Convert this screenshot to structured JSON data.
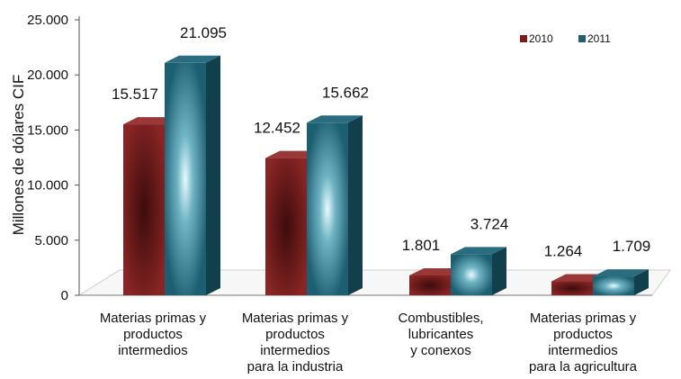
{
  "chart_data": {
    "type": "bar",
    "ylabel": "Millones  de dólares CIF",
    "ylim": [
      0,
      25000
    ],
    "yticks": [
      0,
      5000,
      10000,
      15000,
      20000,
      25000
    ],
    "ytick_labels": [
      "0",
      "5.000",
      "10.000",
      "15.000",
      "20.000",
      "25.000"
    ],
    "categories": [
      [
        "Materias primas y",
        "productos",
        "intermedios"
      ],
      [
        "Materias primas y",
        "productos",
        "intermedios",
        "para la industria"
      ],
      [
        "Combustibles,",
        "lubricantes",
        "y conexos"
      ],
      [
        "Materias primas y",
        "productos",
        "intermedios",
        "para la agricultura"
      ]
    ],
    "series": [
      {
        "name": "2010",
        "values": [
          15517,
          12452,
          1801,
          1264
        ],
        "labels": [
          "15.517",
          "12.452",
          "1.801",
          "1.264"
        ],
        "color": "#7a1c1c"
      },
      {
        "name": "2011",
        "values": [
          21095,
          15662,
          3724,
          1709
        ],
        "labels": [
          "21.095",
          "15.662",
          "3.724",
          "1.709"
        ],
        "color": "#1e5f70"
      }
    ],
    "legend_position": "top-right",
    "grid": false
  }
}
